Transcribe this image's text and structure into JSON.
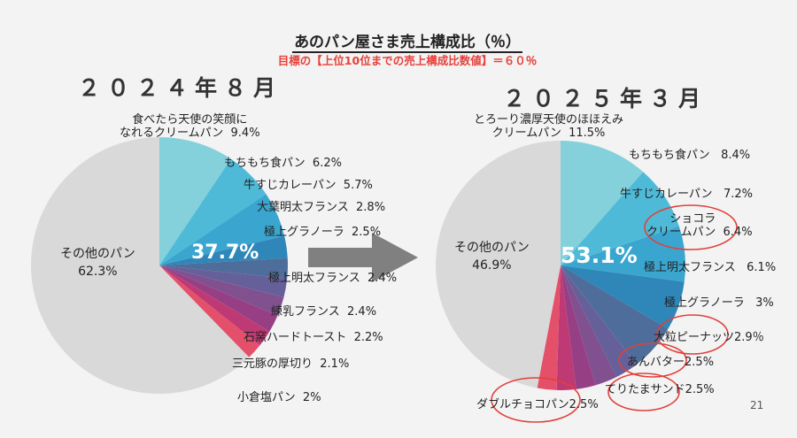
{
  "title": "あのパン屋さま売上構成比（％）",
  "subtitle": "目標の【上位10位までの売上構成比数値】＝６０％",
  "page_number": "21",
  "colors": {
    "others": "#d9d9d9",
    "slices": [
      "#84d1dc",
      "#4fbad8",
      "#3aa6d0",
      "#2f86b8",
      "#4e6d9a",
      "#66609a",
      "#80508f",
      "#973f85",
      "#bf3a74",
      "#e4506a",
      "#f06e52",
      "#f58a4a"
    ],
    "annotation": "#e0403a",
    "arrow": "#808080"
  },
  "chart_data": [
    {
      "type": "pie",
      "title": "２０２４年８月",
      "center_label": "37.7%",
      "slices": [
        {
          "label": "食べたら天使の笑顔に\nなれるクリームパン",
          "value": 9.4,
          "text": "9.4%"
        },
        {
          "label": "もちもち食パン",
          "value": 6.2,
          "text": "6.2%"
        },
        {
          "label": "牛すじカレーパン",
          "value": 5.7,
          "text": "5.7%"
        },
        {
          "label": "大葉明太フランス",
          "value": 2.8,
          "text": "2.8%"
        },
        {
          "label": "極上グラノーラ",
          "value": 2.5,
          "text": "2.5%"
        },
        {
          "label": "極上明太フランス",
          "value": 2.4,
          "text": "2.4%"
        },
        {
          "label": "練乳フランス",
          "value": 2.4,
          "text": "2.4%"
        },
        {
          "label": "石窯ハードトースト",
          "value": 2.2,
          "text": "2.2%"
        },
        {
          "label": "三元豚の厚切り",
          "value": 2.1,
          "text": "2.1%"
        },
        {
          "label": "小倉塩パン",
          "value": 2,
          "text": "2%"
        }
      ],
      "others": {
        "label": "その他のパン",
        "value": 62.3,
        "text": "62.3%"
      }
    },
    {
      "type": "pie",
      "title": "２０２５年３月",
      "center_label": "53.1%",
      "slices": [
        {
          "label": "とろーり濃厚天使のほほえみ\nクリームパン",
          "value": 11.5,
          "text": "11.5%"
        },
        {
          "label": "もちもち食パン",
          "value": 8.4,
          "text": "8.4%"
        },
        {
          "label": "牛すじカレーパン",
          "value": 7.2,
          "text": "7.2%"
        },
        {
          "label": "ショコラ\nクリームパン",
          "value": 6.4,
          "text": "6.4%"
        },
        {
          "label": "極上明太フランス",
          "value": 6.1,
          "text": "6.1%"
        },
        {
          "label": "極上グラノーラ",
          "value": 3,
          "text": "3%"
        },
        {
          "label": "大粒ピーナッツ",
          "value": 2.9,
          "text": "2.9％"
        },
        {
          "label": "あんバター",
          "value": 2.5,
          "text": "2.5%"
        },
        {
          "label": "てりたまサンド",
          "value": 2.5,
          "text": "2.5%"
        },
        {
          "label": "ダブルチョコパン",
          "value": 2.5,
          "text": "2.5%"
        }
      ],
      "others": {
        "label": "その他のパン",
        "value": 46.9,
        "text": "46.9%"
      }
    }
  ]
}
